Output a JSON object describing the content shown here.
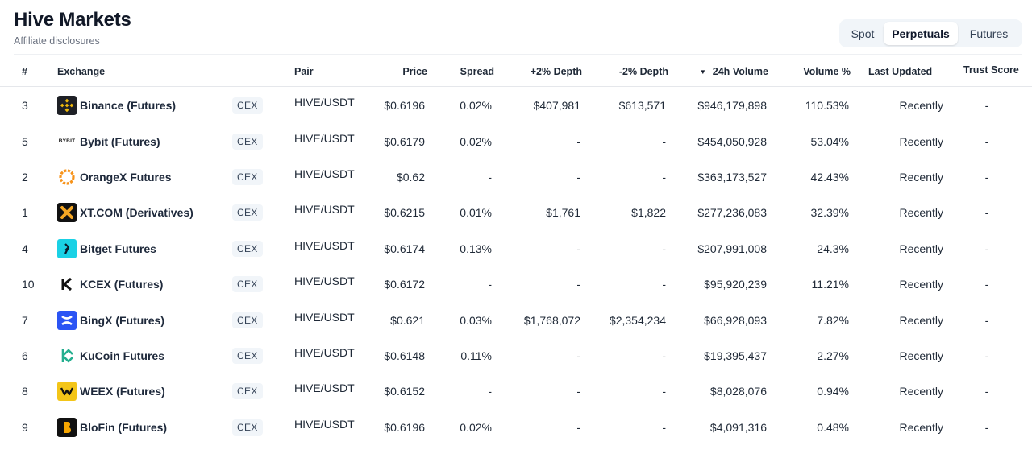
{
  "page": {
    "title": "Hive Markets",
    "subtitle": "Affiliate disclosures"
  },
  "tabs": [
    {
      "label": "Spot",
      "active": false
    },
    {
      "label": "Perpetuals",
      "active": true
    },
    {
      "label": "Futures",
      "active": false
    }
  ],
  "table": {
    "headers": {
      "rank": "#",
      "exchange": "Exchange",
      "pair": "Pair",
      "price": "Price",
      "spread": "Spread",
      "depth_plus": "+2% Depth",
      "depth_minus": "-2% Depth",
      "volume": "24h Volume",
      "volume_pct": "Volume %",
      "last_updated": "Last Updated",
      "trust_score": "Trust Score"
    },
    "sort_indicator": "▼",
    "rows": [
      {
        "rank": "3",
        "exchange": "Binance (Futures)",
        "icon": "binance-logo-icon",
        "type": "CEX",
        "pair": "HIVE/USDT",
        "price": "$0.6196",
        "spread": "0.02%",
        "depth_plus": "$407,981",
        "depth_minus": "$613,571",
        "volume": "$946,179,898",
        "volume_pct": "110.53%",
        "last_updated": "Recently",
        "trust_score": "-"
      },
      {
        "rank": "5",
        "exchange": "Bybit (Futures)",
        "icon": "bybit-logo-icon",
        "icon_text": "BYBIT",
        "type": "CEX",
        "pair": "HIVE/USDT",
        "price": "$0.6179",
        "spread": "0.02%",
        "depth_plus": "-",
        "depth_minus": "-",
        "volume": "$454,050,928",
        "volume_pct": "53.04%",
        "last_updated": "Recently",
        "trust_score": "-"
      },
      {
        "rank": "2",
        "exchange": "OrangeX Futures",
        "icon": "orangex-logo-icon",
        "type": "CEX",
        "pair": "HIVE/USDT",
        "price": "$0.62",
        "spread": "-",
        "depth_plus": "-",
        "depth_minus": "-",
        "volume": "$363,173,527",
        "volume_pct": "42.43%",
        "last_updated": "Recently",
        "trust_score": "-"
      },
      {
        "rank": "1",
        "exchange": "XT.COM (Derivatives)",
        "icon": "xtcom-logo-icon",
        "type": "CEX",
        "pair": "HIVE/USDT",
        "price": "$0.6215",
        "spread": "0.01%",
        "depth_plus": "$1,761",
        "depth_minus": "$1,822",
        "volume": "$277,236,083",
        "volume_pct": "32.39%",
        "last_updated": "Recently",
        "trust_score": "-"
      },
      {
        "rank": "4",
        "exchange": "Bitget Futures",
        "icon": "bitget-logo-icon",
        "type": "CEX",
        "pair": "HIVE/USDT",
        "price": "$0.6174",
        "spread": "0.13%",
        "depth_plus": "-",
        "depth_minus": "-",
        "volume": "$207,991,008",
        "volume_pct": "24.3%",
        "last_updated": "Recently",
        "trust_score": "-"
      },
      {
        "rank": "10",
        "exchange": "KCEX (Futures)",
        "icon": "kcex-logo-icon",
        "type": "CEX",
        "pair": "HIVE/USDT",
        "price": "$0.6172",
        "spread": "-",
        "depth_plus": "-",
        "depth_minus": "-",
        "volume": "$95,920,239",
        "volume_pct": "11.21%",
        "last_updated": "Recently",
        "trust_score": "-"
      },
      {
        "rank": "7",
        "exchange": "BingX (Futures)",
        "icon": "bingx-logo-icon",
        "type": "CEX",
        "pair": "HIVE/USDT",
        "price": "$0.621",
        "spread": "0.03%",
        "depth_plus": "$1,768,072",
        "depth_minus": "$2,354,234",
        "volume": "$66,928,093",
        "volume_pct": "7.82%",
        "last_updated": "Recently",
        "trust_score": "-"
      },
      {
        "rank": "6",
        "exchange": "KuCoin Futures",
        "icon": "kucoin-logo-icon",
        "type": "CEX",
        "pair": "HIVE/USDT",
        "price": "$0.6148",
        "spread": "0.11%",
        "depth_plus": "-",
        "depth_minus": "-",
        "volume": "$19,395,437",
        "volume_pct": "2.27%",
        "last_updated": "Recently",
        "trust_score": "-"
      },
      {
        "rank": "8",
        "exchange": "WEEX (Futures)",
        "icon": "weex-logo-icon",
        "type": "CEX",
        "pair": "HIVE/USDT",
        "price": "$0.6152",
        "spread": "-",
        "depth_plus": "-",
        "depth_minus": "-",
        "volume": "$8,028,076",
        "volume_pct": "0.94%",
        "last_updated": "Recently",
        "trust_score": "-"
      },
      {
        "rank": "9",
        "exchange": "BloFin (Futures)",
        "icon": "blofin-logo-icon",
        "type": "CEX",
        "pair": "HIVE/USDT",
        "price": "$0.6196",
        "spread": "0.02%",
        "depth_plus": "-",
        "depth_minus": "-",
        "volume": "$4,091,316",
        "volume_pct": "0.48%",
        "last_updated": "Recently",
        "trust_score": "-"
      }
    ]
  },
  "colors": {
    "binance": "#f0b90b",
    "orangex": "#f7931a",
    "xtcom": "#f5a623",
    "bitget": "#1ad1e5",
    "bingx": "#2b54f4",
    "kucoin": "#24ae8f",
    "weex": "#f3c518"
  }
}
